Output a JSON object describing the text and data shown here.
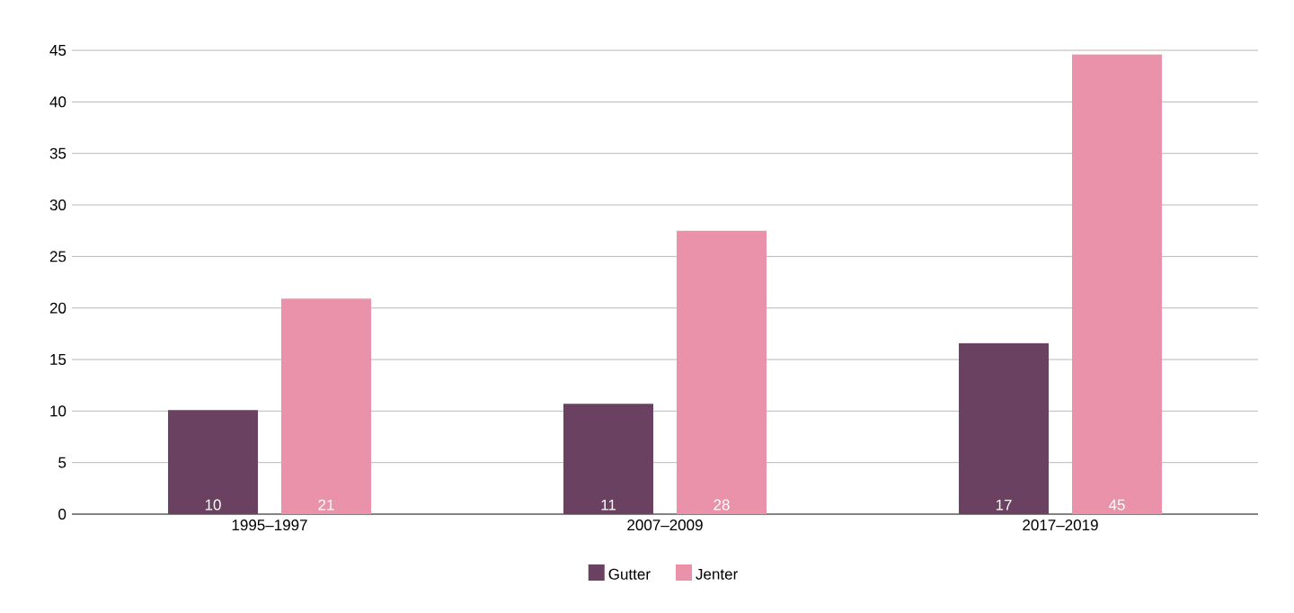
{
  "chart_data": {
    "type": "bar",
    "categories": [
      "1995–1997",
      "2007–2009",
      "2017–2019"
    ],
    "series": [
      {
        "name": "Gutter",
        "color": "#6b4162",
        "values": [
          10.1,
          10.7,
          16.6
        ],
        "value_labels": [
          "10",
          "11",
          "17"
        ]
      },
      {
        "name": "Jenter",
        "color": "#e992aa",
        "values": [
          20.9,
          27.5,
          44.6
        ],
        "value_labels": [
          "21",
          "28",
          "45"
        ]
      }
    ],
    "ylim": [
      0,
      45
    ],
    "yticks": [
      0,
      5,
      10,
      15,
      20,
      25,
      30,
      35,
      40,
      45
    ],
    "grid": "y",
    "legend": "bottom"
  }
}
